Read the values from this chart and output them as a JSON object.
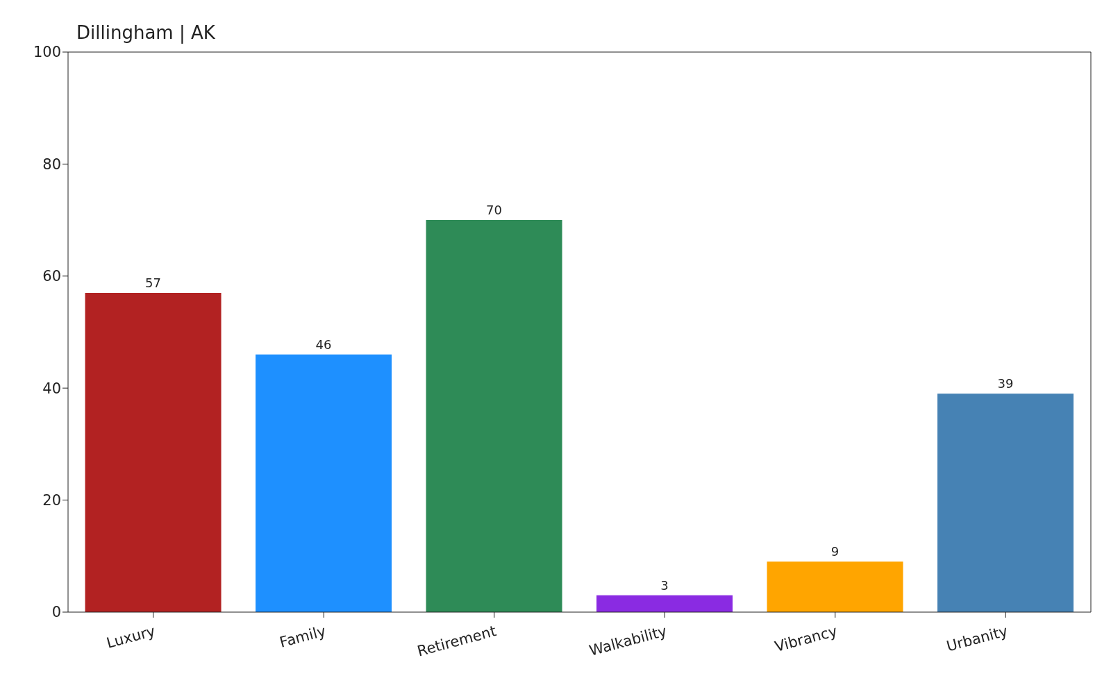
{
  "chart_data": {
    "type": "bar",
    "title": "Dillingham | AK",
    "categories": [
      "Luxury",
      "Family",
      "Retirement",
      "Walkability",
      "Vibrancy",
      "Urbanity"
    ],
    "values": [
      57,
      46,
      70,
      3,
      9,
      39
    ],
    "colors": [
      "#b22222",
      "#1e90ff",
      "#2e8b57",
      "#8a2be2",
      "#ffa500",
      "#4682b4"
    ],
    "ylim": [
      0,
      100
    ],
    "yticks": [
      0,
      20,
      40,
      60,
      80,
      100
    ],
    "grid": false,
    "data_labels": true
  }
}
